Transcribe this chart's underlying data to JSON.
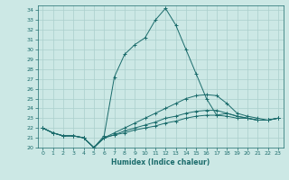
{
  "xlabel": "Humidex (Indice chaleur)",
  "background_color": "#cce8e5",
  "grid_color": "#aacfcc",
  "line_color": "#1a6b6b",
  "xlim": [
    -0.5,
    23.5
  ],
  "ylim": [
    20,
    34.5
  ],
  "x_ticks": [
    0,
    1,
    2,
    3,
    4,
    5,
    6,
    7,
    8,
    9,
    10,
    11,
    12,
    13,
    14,
    15,
    16,
    17,
    18,
    19,
    20,
    21,
    22,
    23
  ],
  "y_ticks": [
    20,
    21,
    22,
    23,
    24,
    25,
    26,
    27,
    28,
    29,
    30,
    31,
    32,
    33,
    34
  ],
  "series": [
    [
      22.0,
      21.5,
      21.2,
      21.2,
      21.0,
      20.0,
      21.0,
      21.3,
      21.5,
      21.8,
      22.0,
      22.2,
      22.5,
      22.7,
      23.0,
      23.2,
      23.3,
      23.3,
      23.2,
      23.0,
      23.0,
      22.8,
      22.8,
      23.0
    ],
    [
      22.0,
      21.5,
      21.2,
      21.2,
      21.0,
      20.0,
      21.0,
      21.3,
      21.7,
      22.0,
      22.3,
      22.6,
      23.0,
      23.2,
      23.5,
      23.7,
      23.8,
      23.8,
      23.5,
      23.2,
      23.0,
      22.8,
      22.8,
      23.0
    ],
    [
      22.0,
      21.5,
      21.2,
      21.2,
      21.0,
      20.0,
      21.0,
      21.5,
      22.0,
      22.5,
      23.0,
      23.5,
      24.0,
      24.5,
      25.0,
      25.3,
      25.4,
      25.3,
      24.5,
      23.5,
      23.2,
      23.0,
      22.8,
      23.0
    ],
    [
      22.0,
      21.5,
      21.2,
      21.2,
      21.0,
      20.0,
      21.2,
      27.2,
      29.5,
      30.5,
      31.2,
      33.0,
      34.2,
      32.5,
      30.0,
      27.5,
      25.0,
      23.3,
      23.5,
      23.2,
      23.0,
      22.8,
      22.8,
      23.0
    ]
  ]
}
